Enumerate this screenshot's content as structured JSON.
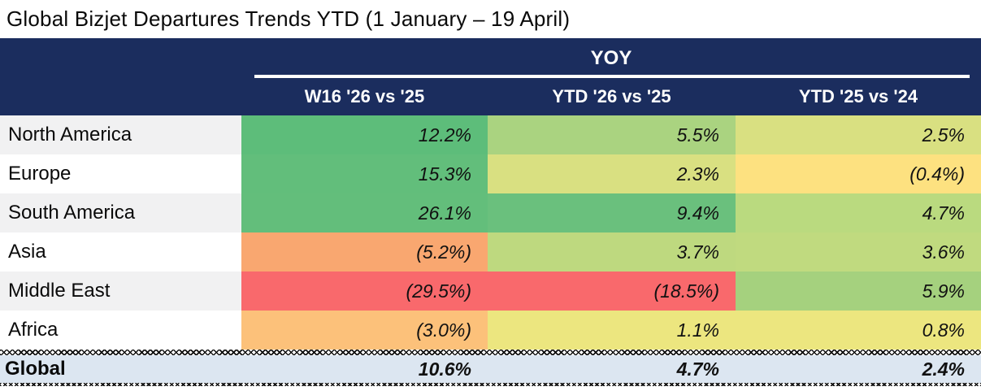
{
  "title": "Global Bizjet Departures Trends YTD (1 January – 19 April)",
  "table": {
    "group_header": "YOY",
    "columns": [
      "W16 '26 vs '25",
      "YTD '26 vs '25",
      "YTD '25 vs '24"
    ],
    "rows": [
      {
        "region": "North America",
        "values": [
          "12.2%",
          "5.5%",
          "2.5%"
        ],
        "colors": [
          "#5dbd7a",
          "#aad380",
          "#d9e081"
        ]
      },
      {
        "region": "Europe",
        "values": [
          "15.3%",
          "2.3%",
          "(0.4%)"
        ],
        "colors": [
          "#62be7b",
          "#d9e081",
          "#fde180"
        ]
      },
      {
        "region": "South America",
        "values": [
          "26.1%",
          "9.4%",
          "4.7%"
        ],
        "colors": [
          "#63be7b",
          "#6ac07d",
          "#bada7f"
        ]
      },
      {
        "region": "Asia",
        "values": [
          "(5.2%)",
          "3.7%",
          "3.6%"
        ],
        "colors": [
          "#f9a770",
          "#bed97f",
          "#c0da7f"
        ]
      },
      {
        "region": "Middle East",
        "values": [
          "(29.5%)",
          "(18.5%)",
          "5.9%"
        ],
        "colors": [
          "#f9696c",
          "#f9696c",
          "#a5d17e"
        ]
      },
      {
        "region": "Africa",
        "values": [
          "(3.0%)",
          "1.1%",
          "0.8%"
        ],
        "colors": [
          "#fcc17a",
          "#ece67f",
          "#ece67f"
        ]
      }
    ],
    "total_row": {
      "region": "Global",
      "values": [
        "10.6%",
        "4.7%",
        "2.4%"
      ]
    }
  },
  "colors": {
    "header_bg": "#1b2d5e",
    "header_text": "#ffffff",
    "row_stripe": "#f1f1f2",
    "total_row_bg": "#dce6f1",
    "heat_green": "#63be7b",
    "heat_yellow": "#ffeb84",
    "heat_red": "#f8696b"
  },
  "chart_data": {
    "type": "table",
    "title": "Global Bizjet Departures Trends YTD (1 January – 19 April)",
    "group_header": "YOY",
    "columns": [
      "W16 '26 vs '25",
      "YTD '26 vs '25",
      "YTD '25 vs '24"
    ],
    "rows": [
      {
        "region": "North America",
        "values_pct": [
          12.2,
          5.5,
          2.5
        ]
      },
      {
        "region": "Europe",
        "values_pct": [
          15.3,
          2.3,
          -0.4
        ]
      },
      {
        "region": "South America",
        "values_pct": [
          26.1,
          9.4,
          4.7
        ]
      },
      {
        "region": "Asia",
        "values_pct": [
          -5.2,
          3.7,
          3.6
        ]
      },
      {
        "region": "Middle East",
        "values_pct": [
          -29.5,
          -18.5,
          5.9
        ]
      },
      {
        "region": "Africa",
        "values_pct": [
          -3.0,
          1.1,
          0.8
        ]
      },
      {
        "region": "Global",
        "values_pct": [
          10.6,
          4.7,
          2.4
        ]
      }
    ],
    "value_format": "percent, negatives shown in parentheses",
    "styling": "red-yellow-green heatmap conditional formatting on value cells"
  }
}
